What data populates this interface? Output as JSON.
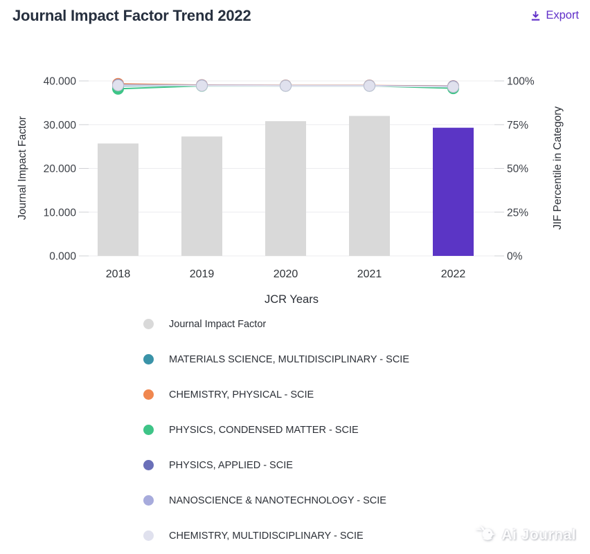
{
  "header": {
    "title": "Journal Impact Factor Trend 2022",
    "export_label": "Export"
  },
  "colors": {
    "accent_purple": "#5b35c5",
    "export_purple": "#6130c9",
    "bar_gray": "#d9d9d9",
    "grid_line": "#ececef",
    "tick_stub": "#cfd0d4",
    "axis_text": "#3a3e45",
    "title_text": "#262f3e",
    "marker_stroke": "#bcc0cf"
  },
  "chart_data": {
    "type": "bar+line combo",
    "categories": [
      "2018",
      "2019",
      "2020",
      "2021",
      "2022"
    ],
    "xlabel": "JCR Years",
    "left_axis": {
      "label": "Journal Impact Factor",
      "tick_labels": [
        "0.000",
        "10.000",
        "20.000",
        "30.000",
        "40.000"
      ],
      "tick_values": [
        0,
        10,
        20,
        30,
        40
      ],
      "min": 0,
      "max": 40
    },
    "right_axis": {
      "label": "JIF Percentile in Category",
      "tick_labels": [
        "0%",
        "25%",
        "50%",
        "75%",
        "100%"
      ],
      "tick_values": [
        0,
        25,
        50,
        75,
        100
      ],
      "min": 0,
      "max": 100
    },
    "bar_series": {
      "name": "Journal Impact Factor",
      "axis": "left",
      "color": "#d9d9d9",
      "highlight_color": "#5b35c5",
      "highlight_index": 4,
      "values": [
        25.7,
        27.3,
        30.8,
        32.0,
        29.3
      ]
    },
    "line_series": [
      {
        "name": "MATERIALS SCIENCE, MULTIDISCIPLINARY - SCIE",
        "axis": "right",
        "color": "#3a93a8",
        "values": [
          97.2,
          97.4,
          97.3,
          97.3,
          96.4
        ]
      },
      {
        "name": "CHEMISTRY, PHYSICAL - SCIE",
        "axis": "right",
        "color": "#f0874f",
        "values": [
          98.3,
          97.6,
          97.4,
          97.4,
          97.0
        ]
      },
      {
        "name": "PHYSICS, CONDENSED MATTER - SCIE",
        "axis": "right",
        "color": "#3ec487",
        "values": [
          95.5,
          97.2,
          97.2,
          97.2,
          95.8
        ]
      },
      {
        "name": "PHYSICS, APPLIED - SCIE",
        "axis": "right",
        "color": "#6a6fb8",
        "values": [
          97.8,
          97.5,
          97.3,
          97.3,
          96.9
        ]
      },
      {
        "name": "NANOSCIENCE & NANOTECHNOLOGY - SCIE",
        "axis": "right",
        "color": "#a7abdc",
        "values": [
          97.6,
          97.4,
          97.2,
          97.2,
          96.7
        ]
      },
      {
        "name": "CHEMISTRY, MULTIDISCIPLINARY - SCIE",
        "axis": "right",
        "color": "#e0e1ee",
        "values": [
          97.5,
          97.3,
          97.2,
          97.2,
          96.6
        ]
      }
    ],
    "legend": [
      {
        "label": "Journal Impact Factor",
        "color": "#d9d9d9"
      },
      {
        "label": "MATERIALS SCIENCE, MULTIDISCIPLINARY - SCIE",
        "color": "#3a93a8"
      },
      {
        "label": "CHEMISTRY, PHYSICAL - SCIE",
        "color": "#f0874f"
      },
      {
        "label": "PHYSICS, CONDENSED MATTER - SCIE",
        "color": "#3ec487"
      },
      {
        "label": "PHYSICS, APPLIED - SCIE",
        "color": "#6a6fb8"
      },
      {
        "label": "NANOSCIENCE & NANOTECHNOLOGY - SCIE",
        "color": "#a7abdc"
      },
      {
        "label": "CHEMISTRY, MULTIDISCIPLINARY - SCIE",
        "color": "#e0e1ee"
      }
    ],
    "legend_position": "bottom-left vertical",
    "grid": true
  },
  "watermark": {
    "text": "Ai Journal"
  }
}
